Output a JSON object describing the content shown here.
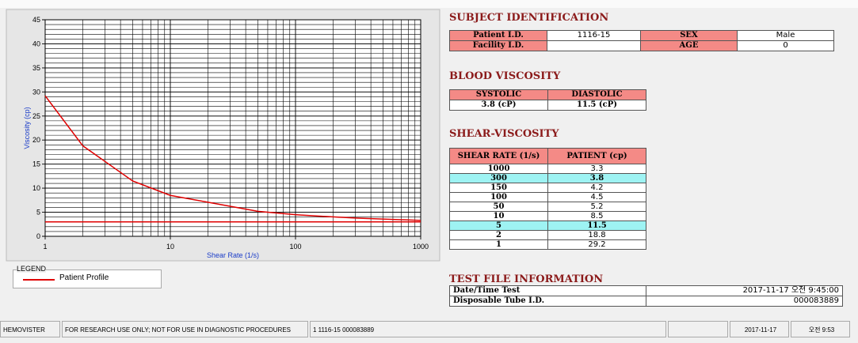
{
  "chart_data": {
    "type": "line",
    "xlabel": "Shear Rate (1/s)",
    "ylabel": "Viscosity (cp)",
    "legend_title": "LEGEND",
    "x": [
      1,
      2,
      5,
      10,
      50,
      100,
      150,
      300,
      1000
    ],
    "series": [
      {
        "name": "Patient Profile",
        "color": "#e00000",
        "values": [
          29.2,
          18.8,
          11.5,
          8.5,
          5.2,
          4.5,
          4.2,
          3.8,
          3.3
        ]
      }
    ],
    "reference_line": 3,
    "xlim": [
      1,
      1000
    ],
    "ylim": [
      0,
      45
    ],
    "xticks": [
      1,
      10,
      100,
      1000
    ],
    "yticks": [
      0,
      5,
      10,
      15,
      20,
      25,
      30,
      35,
      40,
      45
    ],
    "x_log": true,
    "grid": true
  },
  "subject": {
    "title": "SUBJECT IDENTIFICATION",
    "rows": [
      [
        "Patient I.D.",
        "1116-15",
        "SEX",
        "Male"
      ],
      [
        "Facility I.D.",
        null,
        "AGE",
        "0"
      ]
    ]
  },
  "blood": {
    "title": "BLOOD VISCOSITY",
    "header": [
      "SYSTOLIC",
      "DIASTOLIC"
    ],
    "values": [
      "3.8 (cP)",
      "11.5 (cP)"
    ]
  },
  "shear": {
    "title": "SHEAR-VISCOSITY",
    "header": [
      "SHEAR RATE (1/s)",
      "PATIENT (cp)"
    ],
    "rows": [
      [
        "1000",
        "3.3"
      ],
      [
        "300",
        "3.8"
      ],
      [
        "150",
        "4.2"
      ],
      [
        "100",
        "4.5"
      ],
      [
        "50",
        "5.2"
      ],
      [
        "10",
        "8.5"
      ],
      [
        "5",
        "11.5"
      ],
      [
        "2",
        "18.8"
      ],
      [
        "1",
        "29.2"
      ]
    ],
    "highlighted_rows": [
      1,
      6
    ]
  },
  "test_file": {
    "title": "TEST FILE INFORMATION",
    "rows": [
      [
        "Date/Time Test",
        "2017-11-17  오전 9:45:00"
      ],
      [
        "Disposable Tube I.D.",
        "000083889"
      ]
    ]
  },
  "status_bar": [
    "HEMOVISTER",
    "FOR RESEARCH USE ONLY; NOT FOR USE IN DIAGNOSTIC PROCEDURES",
    "1  1116-15  000083889",
    null,
    "2017-11-17",
    "오전 9:53"
  ]
}
